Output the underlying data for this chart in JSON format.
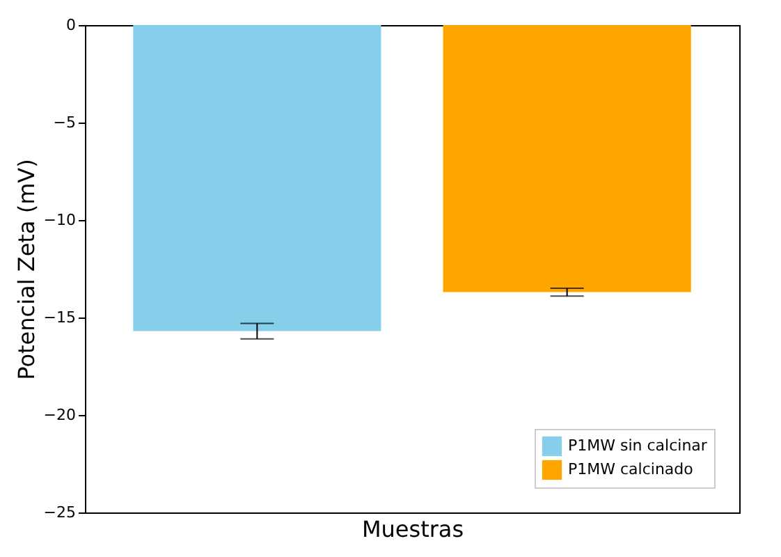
{
  "chart_data": {
    "type": "bar",
    "xlabel": "Muestras",
    "ylabel": "Potencial Zeta (mV)",
    "categories": [
      null
    ],
    "series": [
      {
        "name": "P1MW sin calcinar",
        "color": "#87ceeb",
        "values": [
          -15.7
        ],
        "errors": [
          0.4
        ]
      },
      {
        "name": "P1MW calcinado",
        "color": "#ffa500",
        "values": [
          -13.7
        ],
        "errors": [
          0.2
        ]
      }
    ],
    "ylim": [
      -25,
      0
    ],
    "yticks": [
      {
        "value": -25,
        "label": "−25"
      },
      {
        "value": -20,
        "label": "−20"
      },
      {
        "value": -15,
        "label": "−15"
      },
      {
        "value": -10,
        "label": "−10"
      },
      {
        "value": -5,
        "label": "−5"
      },
      {
        "value": 0,
        "label": "0"
      }
    ],
    "legend": "bottom right",
    "tick_labels": "y"
  }
}
